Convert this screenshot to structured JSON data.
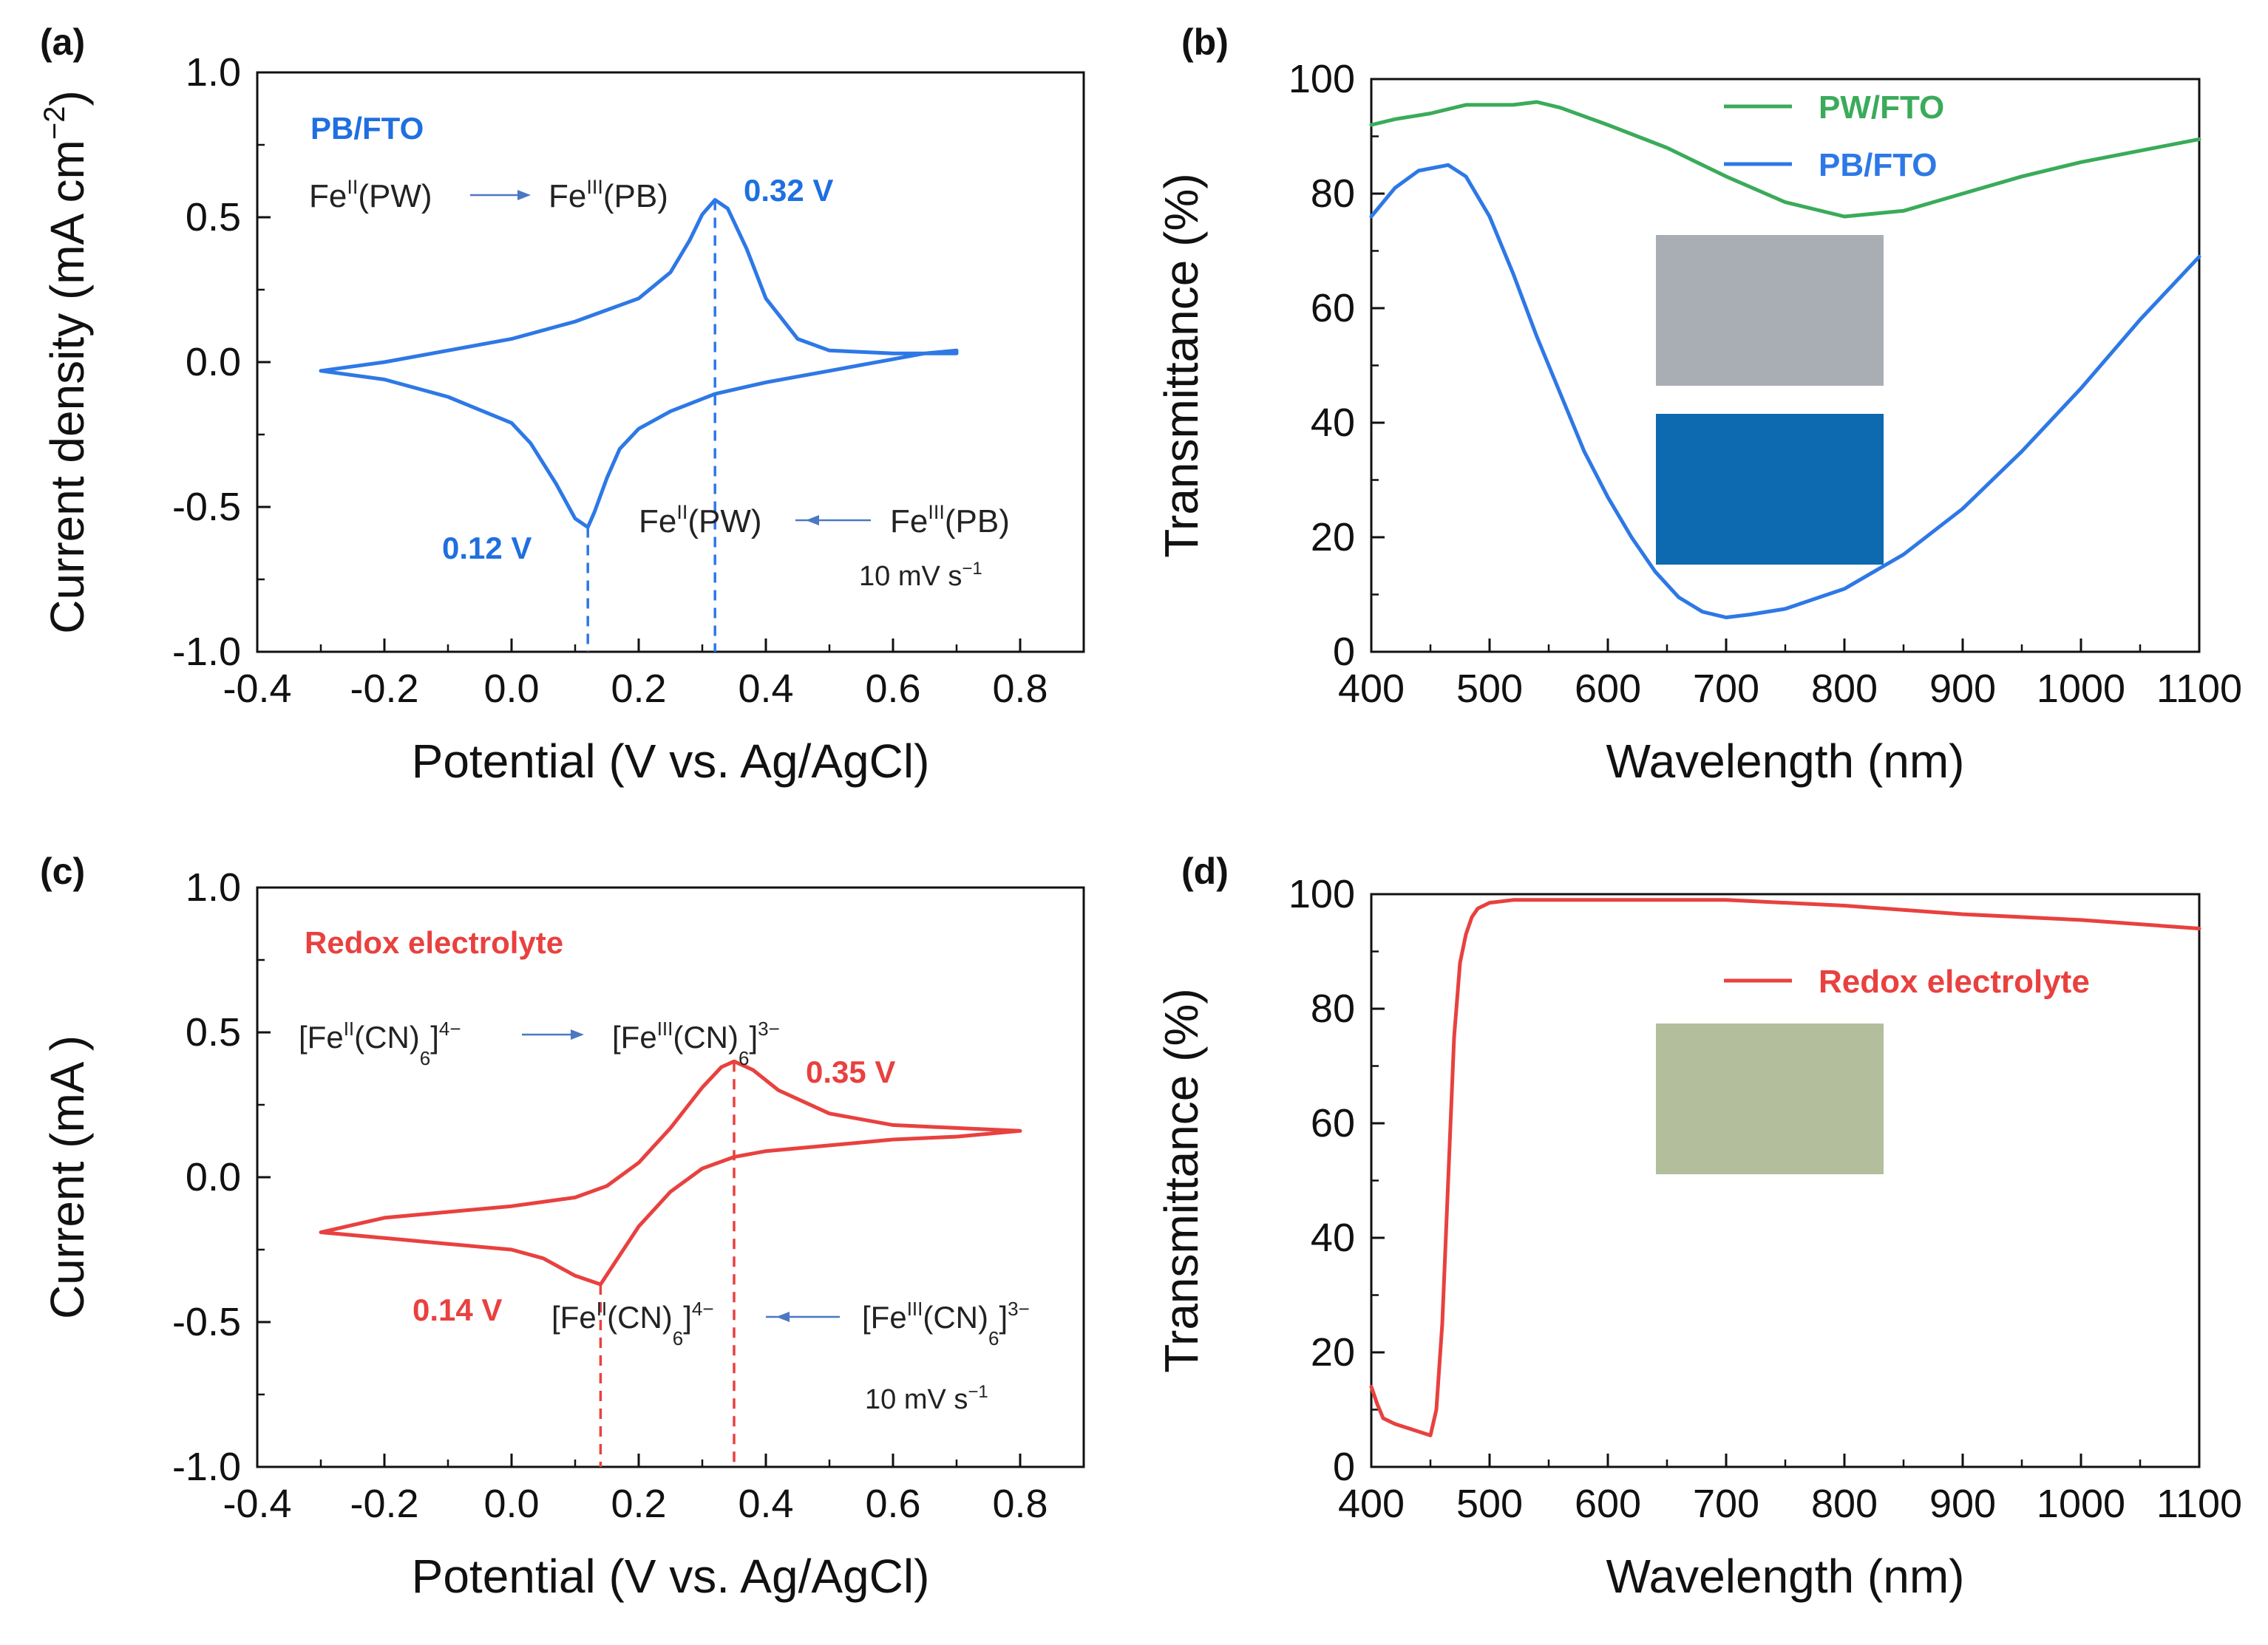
{
  "chart_data": [
    {
      "type": "line",
      "panel_label": "(a)",
      "xlabel": "Potential (V vs. Ag/AgCl)",
      "ylabel": {
        "main": "Current density (mA cm",
        "sup": "−2",
        "tail": ")"
      },
      "xlim": [
        -0.4,
        0.9
      ],
      "ylim": [
        -1.0,
        1.0
      ],
      "xticks": [
        "-0.4",
        "-0.2",
        "0.0",
        "0.2",
        "0.4",
        "0.6",
        "0.8"
      ],
      "yticks": [
        "-1.0",
        "-0.5",
        "0.0",
        "0.5",
        "1.0"
      ],
      "legend": "PB/FTO",
      "legend_color": "#1f6fe0",
      "series": [
        {
          "name": "PB/FTO",
          "color": "#2e78e6",
          "x": [
            -0.3,
            -0.2,
            -0.1,
            0.0,
            0.1,
            0.2,
            0.25,
            0.28,
            0.3,
            0.32,
            0.34,
            0.37,
            0.4,
            0.45,
            0.5,
            0.6,
            0.7,
            0.7,
            0.65,
            0.6,
            0.5,
            0.4,
            0.32,
            0.25,
            0.2,
            0.17,
            0.15,
            0.13,
            0.12,
            0.1,
            0.07,
            0.03,
            0.0,
            -0.1,
            -0.2,
            -0.3
          ],
          "y": [
            -0.03,
            0.0,
            0.04,
            0.08,
            0.14,
            0.22,
            0.31,
            0.42,
            0.51,
            0.56,
            0.53,
            0.39,
            0.22,
            0.08,
            0.04,
            0.03,
            0.03,
            0.04,
            0.03,
            0.01,
            -0.03,
            -0.07,
            -0.11,
            -0.17,
            -0.23,
            -0.3,
            -0.4,
            -0.52,
            -0.57,
            -0.54,
            -0.42,
            -0.28,
            -0.21,
            -0.12,
            -0.06,
            -0.03
          ]
        }
      ],
      "vlines": [
        0.32,
        0.12
      ],
      "annotations": {
        "peak_ox": "0.32 V",
        "peak_red": "0.12 V",
        "ox_from": {
          "a": "Fe",
          "sup": "II",
          "b": "(PW)"
        },
        "ox_to": {
          "a": "Fe",
          "sup": "III",
          "b": "(PB)"
        },
        "red_to": {
          "a": "Fe",
          "sup": "II",
          "b": "(PW)"
        },
        "red_from": {
          "a": "Fe",
          "sup": "III",
          "b": "(PB)"
        },
        "scan_rate": {
          "a": "10 mV s",
          "sup": "−1"
        }
      }
    },
    {
      "type": "line",
      "panel_label": "(b)",
      "xlabel": "Wavelength (nm)",
      "ylabel": "Transmittance (%)",
      "xlim": [
        400,
        1100
      ],
      "ylim": [
        0,
        100
      ],
      "xticks": [
        "400",
        "500",
        "600",
        "700",
        "800",
        "900",
        "1000",
        "1100"
      ],
      "yticks": [
        "0",
        "20",
        "40",
        "60",
        "80",
        "100"
      ],
      "legend_position": "top-right",
      "series": [
        {
          "name": "PW/FTO",
          "color": "#3aab5a",
          "x": [
            400,
            420,
            450,
            480,
            500,
            520,
            540,
            560,
            600,
            650,
            700,
            750,
            800,
            850,
            900,
            950,
            1000,
            1050,
            1100
          ],
          "y": [
            92,
            93,
            94,
            95.5,
            95.5,
            95.5,
            96,
            95,
            92,
            88,
            83,
            78.5,
            76,
            77,
            80,
            83,
            85.5,
            87.5,
            89.5
          ]
        },
        {
          "name": "PB/FTO",
          "color": "#2e78e6",
          "x": [
            400,
            420,
            440,
            465,
            480,
            500,
            520,
            540,
            560,
            580,
            600,
            620,
            640,
            660,
            680,
            700,
            720,
            750,
            800,
            850,
            900,
            950,
            1000,
            1050,
            1100
          ],
          "y": [
            76,
            81,
            84,
            85,
            83,
            76,
            66,
            55,
            45,
            35,
            27,
            20,
            14,
            9.5,
            7,
            6,
            6.5,
            7.5,
            11,
            17,
            25,
            35,
            46,
            58,
            69
          ]
        }
      ],
      "inset_colors": [
        "#a9aeb5",
        "#0d6ab0"
      ]
    },
    {
      "type": "line",
      "panel_label": "(c)",
      "xlabel": "Potential (V vs. Ag/AgCl)",
      "ylabel": "Current (mA )",
      "xlim": [
        -0.4,
        0.9
      ],
      "ylim": [
        -1.0,
        1.0
      ],
      "xticks": [
        "-0.4",
        "-0.2",
        "0.0",
        "0.2",
        "0.4",
        "0.6",
        "0.8"
      ],
      "yticks": [
        "-1.0",
        "-0.5",
        "0.0",
        "0.5",
        "1.0"
      ],
      "legend": "Redox electrolyte",
      "legend_color": "#e8413f",
      "series": [
        {
          "name": "Redox electrolyte",
          "color": "#e8413f",
          "x": [
            -0.3,
            -0.2,
            -0.1,
            0.0,
            0.1,
            0.15,
            0.2,
            0.25,
            0.3,
            0.33,
            0.35,
            0.38,
            0.42,
            0.5,
            0.6,
            0.7,
            0.8,
            0.7,
            0.6,
            0.5,
            0.4,
            0.35,
            0.3,
            0.25,
            0.2,
            0.17,
            0.14,
            0.1,
            0.05,
            0.0,
            -0.1,
            -0.2,
            -0.3
          ],
          "y": [
            -0.19,
            -0.14,
            -0.12,
            -0.1,
            -0.07,
            -0.03,
            0.05,
            0.17,
            0.31,
            0.38,
            0.4,
            0.37,
            0.3,
            0.22,
            0.18,
            0.17,
            0.16,
            0.14,
            0.13,
            0.11,
            0.09,
            0.07,
            0.03,
            -0.05,
            -0.17,
            -0.27,
            -0.37,
            -0.34,
            -0.28,
            -0.25,
            -0.23,
            -0.21,
            -0.19
          ]
        }
      ],
      "vlines": [
        0.35,
        0.14
      ],
      "annotations": {
        "peak_ox": "0.35 V",
        "peak_red": "0.14 V",
        "ox_from": {
          "a": "[Fe",
          "sup": "II",
          "b": "(CN)",
          "sub": "6",
          "c": "]",
          "sup2": "4−"
        },
        "ox_to": {
          "a": "[Fe",
          "sup": "III",
          "b": "(CN)",
          "sub": "6",
          "c": "]",
          "sup2": "3−"
        },
        "red_to": {
          "a": "[Fe",
          "sup": "II",
          "b": "(CN)",
          "sub": "6",
          "c": "]",
          "sup2": "4−"
        },
        "red_from": {
          "a": "[Fe",
          "sup": "III",
          "b": "(CN)",
          "sub": "6",
          "c": "]",
          "sup2": "3−"
        },
        "scan_rate": {
          "a": "10 mV s",
          "sup": "−1"
        }
      }
    },
    {
      "type": "line",
      "panel_label": "(d)",
      "xlabel": "Wavelength (nm)",
      "ylabel": "Transmittance (%)",
      "xlim": [
        400,
        1100
      ],
      "ylim": [
        0,
        100
      ],
      "xticks": [
        "400",
        "500",
        "600",
        "700",
        "800",
        "900",
        "1000",
        "1100"
      ],
      "yticks": [
        "0",
        "20",
        "40",
        "60",
        "80",
        "100"
      ],
      "legend_position": "top-right",
      "series": [
        {
          "name": "Redox electrolyte",
          "color": "#e8413f",
          "x": [
            400,
            405,
            410,
            420,
            435,
            450,
            455,
            460,
            465,
            470,
            475,
            480,
            485,
            490,
            500,
            520,
            600,
            700,
            800,
            900,
            1000,
            1100
          ],
          "y": [
            14,
            11,
            8.5,
            7.5,
            6.5,
            5.5,
            10,
            25,
            50,
            75,
            88,
            93,
            96,
            97.5,
            98.5,
            99,
            99,
            99,
            98,
            96.5,
            95.5,
            94
          ]
        }
      ],
      "inset_colors": [
        "#b3be9d"
      ]
    }
  ]
}
